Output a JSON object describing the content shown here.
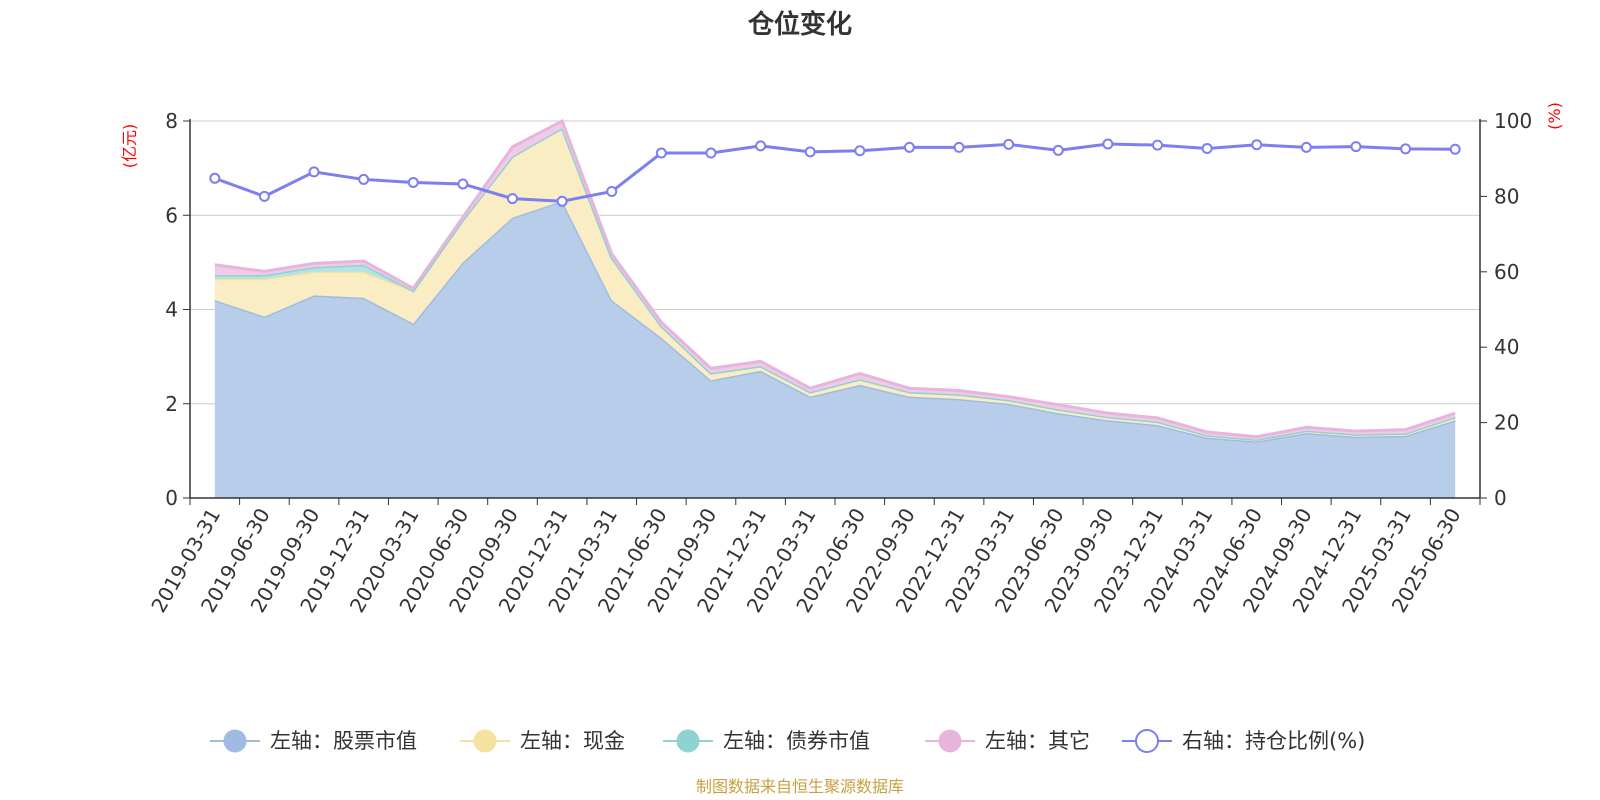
{
  "chart_data": {
    "type": "area",
    "title": "仓位变化",
    "left_unit": "(亿元)",
    "right_unit": "(%)",
    "left_ylim": [
      0,
      8
    ],
    "left_ticks": [
      "0",
      "2",
      "4",
      "6",
      "8"
    ],
    "right_ylim": [
      0,
      100
    ],
    "right_ticks": [
      "0",
      "20",
      "40",
      "60",
      "80",
      "100"
    ],
    "grid": true,
    "stacked": true,
    "legend_position": "bottom",
    "categories": [
      "2019-03-31",
      "2019-06-30",
      "2019-09-30",
      "2019-12-31",
      "2020-03-31",
      "2020-06-30",
      "2020-09-30",
      "2020-12-31",
      "2021-03-31",
      "2021-06-30",
      "2021-09-30",
      "2021-12-31",
      "2022-03-31",
      "2022-06-30",
      "2022-09-30",
      "2022-12-31",
      "2023-03-31",
      "2023-06-30",
      "2023-09-30",
      "2023-12-31",
      "2024-03-31",
      "2024-06-30",
      "2024-09-30",
      "2024-12-31",
      "2025-03-31",
      "2025-06-30"
    ],
    "series": [
      {
        "name": "左轴：股票市值",
        "axis": "left",
        "color": "#9fbbe2",
        "fill": "#b8cdea",
        "values": [
          4.2,
          3.85,
          4.3,
          4.25,
          3.7,
          5.0,
          5.95,
          6.3,
          4.2,
          3.4,
          2.5,
          2.7,
          2.15,
          2.4,
          2.15,
          2.1,
          2.0,
          1.8,
          1.65,
          1.55,
          1.28,
          1.2,
          1.38,
          1.3,
          1.32,
          1.65
        ]
      },
      {
        "name": "左轴：现金",
        "axis": "left",
        "color": "#f5e2a0",
        "fill": "#faedc4",
        "values": [
          0.45,
          0.8,
          0.5,
          0.55,
          0.7,
          0.9,
          1.3,
          1.55,
          0.9,
          0.25,
          0.15,
          0.1,
          0.1,
          0.12,
          0.1,
          0.1,
          0.08,
          0.08,
          0.07,
          0.07,
          0.05,
          0.04,
          0.05,
          0.05,
          0.05,
          0.07
        ]
      },
      {
        "name": "左轴：债券市值",
        "axis": "left",
        "color": "#8fd2d4",
        "fill": "#b3e3e4",
        "values": [
          0.08,
          0.08,
          0.1,
          0.15,
          0,
          0,
          0,
          0,
          0,
          0,
          0,
          0,
          0,
          0,
          0,
          0,
          0,
          0,
          0,
          0,
          0,
          0,
          0,
          0,
          0,
          0
        ]
      },
      {
        "name": "左轴：其它",
        "axis": "left",
        "color": "#e7b5dc",
        "fill": "#efcbe8",
        "values": [
          0.22,
          0.08,
          0.08,
          0.08,
          0.05,
          0.06,
          0.2,
          0.15,
          0.08,
          0.08,
          0.1,
          0.1,
          0.08,
          0.12,
          0.08,
          0.08,
          0.07,
          0.1,
          0.08,
          0.08,
          0.07,
          0.06,
          0.07,
          0.07,
          0.08,
          0.08
        ]
      },
      {
        "name": "右轴：持仓比例(%)",
        "axis": "right",
        "type": "line",
        "color": "#7b7ff0",
        "values": [
          84.8,
          80,
          86.5,
          84.5,
          83.7,
          83.3,
          79.4,
          78.7,
          81.3,
          91.5,
          91.5,
          93.4,
          91.8,
          92.1,
          93,
          93,
          93.8,
          92.2,
          93.9,
          93.6,
          92.7,
          93.7,
          93,
          93.2,
          92.6,
          92.5
        ]
      }
    ],
    "source": "制图数据来自恒生聚源数据库"
  }
}
